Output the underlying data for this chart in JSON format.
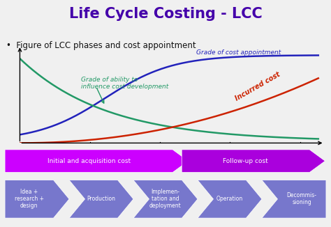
{
  "title": "Life Cycle Costing - LCC",
  "title_color": "#4400aa",
  "subtitle": "•  Figure of LCC phases and cost appointment",
  "subtitle_color": "#111111",
  "bg_color": "#f0f0f0",
  "curve_blue_label": "Grade of cost appointment",
  "curve_green_label": "Grade of ability to\ninfluence cost development",
  "curve_red_label": "Incurred cost",
  "blue_color": "#2222bb",
  "green_color": "#229966",
  "red_color": "#cc2200",
  "phase_bar1_color": "#cc00ff",
  "phase_bar2_color": "#aa00dd",
  "phase_bar1_label": "Initial and acquisition cost",
  "phase_bar2_label": "Follow-up cost",
  "phase_boxes": [
    "Idea +\nresearch +\ndesign",
    "Production",
    "Implemen-\ntation and\ndeployment",
    "Operation",
    "Decommis-\nsioning"
  ],
  "phase_box_color": "#7777cc",
  "phase_box_text_color": "#ffffff",
  "figsize": [
    4.74,
    3.26
  ],
  "dpi": 100
}
